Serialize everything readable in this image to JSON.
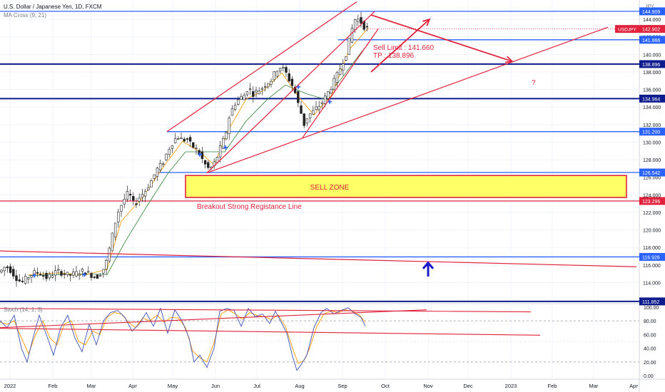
{
  "header": {
    "symbol_title": "U.S. Dollar / Japanese Yen, 1D, FXCM",
    "indicator_label": "MA Cross (9, 21)",
    "currency_label": "JPY"
  },
  "colors": {
    "up": "#26a69a",
    "down": "#ef5350",
    "candle_up_body": "#ffffff",
    "candle_outline": "#222222",
    "blue_line": "#2962ff",
    "navy_line": "#0d1b8c",
    "red_line": "#e0223c",
    "ma_fast": "#f39c12",
    "ma_slow": "#2e7d32",
    "stoch_k": "#3f51b5",
    "stoch_d": "#ff9800",
    "sell_zone_fill": "#ffff66",
    "sell_zone_border": "#e0223c",
    "axis_text": "#131722",
    "grid": "#f0f3fa"
  },
  "chart_data": {
    "type": "candlestick",
    "title": "U.S. Dollar / Japanese Yen, 1D, FXCM",
    "x_ticks": [
      "2022",
      "Feb",
      "Mar",
      "Apr",
      "May",
      "Jun",
      "Jul",
      "Aug",
      "Sep",
      "Oct",
      "Nov",
      "Dec",
      "2023",
      "Feb",
      "Mar",
      "Apr"
    ],
    "y_ticks": [
      "144.000",
      "142.000",
      "140.000",
      "138.000",
      "136.000",
      "134.000",
      "132.000",
      "130.000",
      "128.000",
      "126.000",
      "124.000",
      "122.000",
      "120.000",
      "118.000",
      "116.000",
      "114.000"
    ],
    "ylim": [
      111.6,
      146.2
    ],
    "last_price": {
      "label": "USDJPY",
      "value": "142.902"
    },
    "horizontal_levels": [
      {
        "value": "144.909",
        "kind": "blue"
      },
      {
        "value": "141.666",
        "kind": "blue"
      },
      {
        "value": "138.896",
        "kind": "navy"
      },
      {
        "value": "134.964",
        "kind": "navy"
      },
      {
        "value": "131.200",
        "kind": "blue"
      },
      {
        "value": "126.542",
        "kind": "blue"
      },
      {
        "value": "123.296",
        "kind": "red"
      },
      {
        "value": "116.926",
        "kind": "blue"
      },
      {
        "value": "111.852",
        "kind": "navy"
      }
    ],
    "price_path": [
      [
        0,
        115.2
      ],
      [
        8,
        115.9
      ],
      [
        15,
        115.4
      ],
      [
        22,
        114.6
      ],
      [
        30,
        114.0
      ],
      [
        40,
        114.7
      ],
      [
        50,
        115.2
      ],
      [
        58,
        115.0
      ],
      [
        66,
        114.5
      ],
      [
        74,
        115.0
      ],
      [
        80,
        115.3
      ],
      [
        88,
        115.1
      ],
      [
        96,
        114.8
      ],
      [
        105,
        115.0
      ],
      [
        115,
        115.3
      ],
      [
        125,
        115.0
      ],
      [
        135,
        114.6
      ],
      [
        142,
        115.2
      ],
      [
        148,
        116.0
      ],
      [
        152,
        117.4
      ],
      [
        158,
        119.6
      ],
      [
        164,
        121.8
      ],
      [
        172,
        123.2
      ],
      [
        180,
        124.3
      ],
      [
        188,
        122.8
      ],
      [
        196,
        123.8
      ],
      [
        204,
        124.5
      ],
      [
        212,
        125.6
      ],
      [
        220,
        126.9
      ],
      [
        228,
        127.6
      ],
      [
        236,
        129.2
      ],
      [
        244,
        130.3
      ],
      [
        250,
        130.6
      ],
      [
        256,
        130.2
      ],
      [
        262,
        130.4
      ],
      [
        268,
        129.6
      ],
      [
        274,
        129.3
      ],
      [
        280,
        128.6
      ],
      [
        286,
        127.6
      ],
      [
        292,
        127.0
      ],
      [
        298,
        127.2
      ],
      [
        304,
        128.3
      ],
      [
        310,
        129.6
      ],
      [
        316,
        130.8
      ],
      [
        322,
        133.2
      ],
      [
        330,
        134.5
      ],
      [
        336,
        135.0
      ],
      [
        342,
        135.3
      ],
      [
        348,
        136.3
      ],
      [
        354,
        135.5
      ],
      [
        360,
        135.8
      ],
      [
        366,
        136.1
      ],
      [
        372,
        136.6
      ],
      [
        380,
        137.1
      ],
      [
        388,
        138.3
      ],
      [
        394,
        138.6
      ],
      [
        400,
        138.0
      ],
      [
        406,
        137.0
      ],
      [
        412,
        136.1
      ],
      [
        418,
        134.3
      ],
      [
        422,
        133.3
      ],
      [
        426,
        132.0
      ],
      [
        432,
        133.1
      ],
      [
        438,
        133.4
      ],
      [
        444,
        133.9
      ],
      [
        450,
        134.4
      ],
      [
        456,
        135.1
      ],
      [
        462,
        136.0
      ],
      [
        468,
        136.9
      ],
      [
        474,
        137.9
      ],
      [
        480,
        139.1
      ],
      [
        486,
        140.3
      ],
      [
        492,
        142.6
      ],
      [
        498,
        144.1
      ],
      [
        504,
        143.9
      ],
      [
        510,
        143.2
      ],
      [
        516,
        142.902
      ]
    ],
    "ma_fast": [
      [
        40,
        114.9
      ],
      [
        80,
        115.1
      ],
      [
        120,
        114.9
      ],
      [
        150,
        115.5
      ],
      [
        170,
        121.0
      ],
      [
        200,
        123.7
      ],
      [
        230,
        127.3
      ],
      [
        256,
        130.1
      ],
      [
        280,
        128.9
      ],
      [
        300,
        127.4
      ],
      [
        320,
        131.4
      ],
      [
        345,
        134.9
      ],
      [
        370,
        135.9
      ],
      [
        395,
        137.9
      ],
      [
        420,
        135.0
      ],
      [
        440,
        133.1
      ],
      [
        465,
        135.4
      ],
      [
        490,
        140.6
      ],
      [
        516,
        143.0
      ]
    ],
    "ma_slow": [
      [
        40,
        114.8
      ],
      [
        80,
        114.9
      ],
      [
        120,
        115.0
      ],
      [
        150,
        114.9
      ],
      [
        175,
        118.6
      ],
      [
        205,
        122.6
      ],
      [
        235,
        126.4
      ],
      [
        260,
        128.9
      ],
      [
        290,
        128.9
      ],
      [
        315,
        128.9
      ],
      [
        345,
        132.4
      ],
      [
        375,
        134.9
      ],
      [
        400,
        136.5
      ],
      [
        430,
        135.5
      ],
      [
        455,
        134.9
      ],
      [
        480,
        137.4
      ],
      [
        505,
        140.1
      ],
      [
        516,
        141.2
      ]
    ],
    "annotations": [
      {
        "kind": "rising_channel",
        "upper": [
          [
            234,
            131.2
          ],
          [
            500,
            146.0
          ]
        ],
        "lower": [
          [
            290,
            126.5
          ],
          [
            525,
            144.9
          ]
        ]
      },
      {
        "kind": "support_trendline",
        "from": [
          424,
          130.5
        ],
        "to": [
          530,
          142.9
        ]
      },
      {
        "kind": "long_trendline",
        "from": [
          290,
          126.5
        ],
        "to": [
          852,
          143.1
        ]
      },
      {
        "kind": "long_descending_line",
        "from": [
          0,
          117.6
        ],
        "to": [
          892,
          115.8
        ]
      },
      {
        "kind": "arrow_down",
        "from": [
          520,
          144.5
        ],
        "to": [
          718,
          139.2
        ]
      },
      {
        "kind": "arrow_diag",
        "from": [
          520,
          138.0
        ],
        "to": [
          602,
          144.0
        ]
      },
      {
        "kind": "sell_zone",
        "x": [
          260,
          878
        ],
        "y": [
          123.7,
          126.2
        ]
      },
      {
        "kind": "arrow_up",
        "at": [
          600,
          116.0
        ]
      }
    ],
    "sell_limit_text": "Sell Limit : 141.660",
    "tp_text": "TP : 138.896",
    "question_mark": "?",
    "sell_zone_text": "SELL ZONE",
    "breakout_text": "Breakout Strong Registance Line",
    "stochastic": {
      "label": "Stoch (14, 1, 3)",
      "y_ticks": [
        "100.00",
        "80.00",
        "60.00",
        "40.00",
        "20.00",
        "0.00"
      ],
      "ylim": [
        -5,
        105
      ],
      "k": [
        [
          0,
          80
        ],
        [
          10,
          70
        ],
        [
          20,
          88
        ],
        [
          30,
          40
        ],
        [
          38,
          20
        ],
        [
          45,
          50
        ],
        [
          55,
          88
        ],
        [
          65,
          60
        ],
        [
          75,
          30
        ],
        [
          85,
          70
        ],
        [
          95,
          88
        ],
        [
          105,
          55
        ],
        [
          115,
          35
        ],
        [
          125,
          75
        ],
        [
          135,
          45
        ],
        [
          145,
          80
        ],
        [
          155,
          92
        ],
        [
          165,
          95
        ],
        [
          175,
          85
        ],
        [
          185,
          65
        ],
        [
          195,
          75
        ],
        [
          205,
          92
        ],
        [
          215,
          72
        ],
        [
          225,
          98
        ],
        [
          235,
          62
        ],
        [
          245,
          96
        ],
        [
          255,
          80
        ],
        [
          265,
          55
        ],
        [
          272,
          20
        ],
        [
          280,
          30
        ],
        [
          290,
          12
        ],
        [
          300,
          40
        ],
        [
          308,
          94
        ],
        [
          318,
          98
        ],
        [
          328,
          95
        ],
        [
          338,
          72
        ],
        [
          348,
          98
        ],
        [
          358,
          86
        ],
        [
          368,
          90
        ],
        [
          378,
          76
        ],
        [
          386,
          94
        ],
        [
          394,
          78
        ],
        [
          402,
          62
        ],
        [
          410,
          28
        ],
        [
          416,
          8
        ],
        [
          422,
          16
        ],
        [
          430,
          30
        ],
        [
          440,
          70
        ],
        [
          450,
          92
        ],
        [
          458,
          98
        ],
        [
          468,
          90
        ],
        [
          478,
          95
        ],
        [
          488,
          99
        ],
        [
          498,
          90
        ],
        [
          506,
          85
        ],
        [
          512,
          72
        ]
      ],
      "d": [
        [
          0,
          78
        ],
        [
          10,
          75
        ],
        [
          20,
          80
        ],
        [
          30,
          55
        ],
        [
          40,
          32
        ],
        [
          50,
          60
        ],
        [
          60,
          80
        ],
        [
          70,
          55
        ],
        [
          80,
          45
        ],
        [
          90,
          75
        ],
        [
          100,
          80
        ],
        [
          110,
          50
        ],
        [
          120,
          45
        ],
        [
          130,
          65
        ],
        [
          140,
          60
        ],
        [
          150,
          85
        ],
        [
          160,
          92
        ],
        [
          170,
          90
        ],
        [
          180,
          78
        ],
        [
          190,
          70
        ],
        [
          200,
          84
        ],
        [
          210,
          80
        ],
        [
          220,
          88
        ],
        [
          230,
          78
        ],
        [
          240,
          85
        ],
        [
          250,
          84
        ],
        [
          260,
          70
        ],
        [
          270,
          36
        ],
        [
          280,
          26
        ],
        [
          290,
          20
        ],
        [
          300,
          48
        ],
        [
          310,
          90
        ],
        [
          320,
          96
        ],
        [
          330,
          90
        ],
        [
          340,
          82
        ],
        [
          350,
          92
        ],
        [
          360,
          88
        ],
        [
          370,
          86
        ],
        [
          380,
          82
        ],
        [
          390,
          88
        ],
        [
          400,
          72
        ],
        [
          410,
          40
        ],
        [
          418,
          18
        ],
        [
          426,
          22
        ],
        [
          434,
          40
        ],
        [
          444,
          72
        ],
        [
          454,
          90
        ],
        [
          464,
          94
        ],
        [
          474,
          92
        ],
        [
          484,
          96
        ],
        [
          494,
          94
        ],
        [
          504,
          88
        ],
        [
          512,
          78
        ]
      ],
      "lines": [
        {
          "from": [
            0,
            70
          ],
          "to": [
            598,
            96
          ]
        },
        {
          "from": [
            0,
            98
          ],
          "to": [
            744,
            93
          ]
        },
        {
          "from": [
            0,
            69
          ],
          "to": [
            757,
            59
          ]
        }
      ]
    }
  }
}
